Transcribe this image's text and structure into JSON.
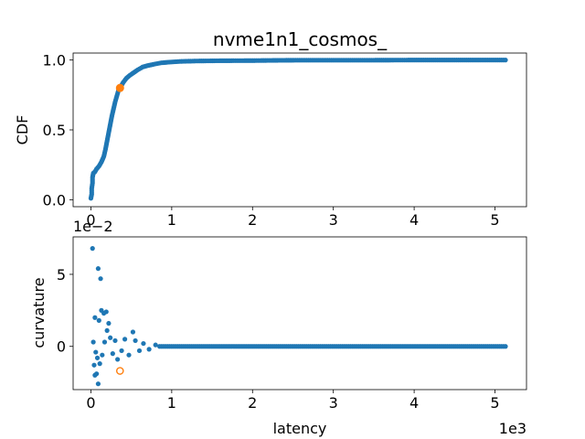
{
  "figure": {
    "title": "nvme1n1_cosmos_"
  },
  "chart_data": [
    {
      "type": "scatter",
      "title": "nvme1n1_cosmos_",
      "xlabel": "",
      "ylabel": "CDF",
      "xlim": [
        -0.22,
        5.39
      ],
      "ylim": [
        -0.05,
        1.05
      ],
      "xticks": [
        0,
        1,
        2,
        3,
        4,
        5
      ],
      "xtick_labels": [
        "0",
        "1",
        "2",
        "3",
        "4",
        "5"
      ],
      "yticks": [
        0.0,
        0.5,
        1.0
      ],
      "ytick_labels": [
        "0.0",
        "0.5",
        "1.0"
      ],
      "grid": false,
      "series": [
        {
          "color": "#1f77b4",
          "marker": "filled-circle",
          "description_points": [
            [
              0.0,
              0.01
            ],
            [
              0.01,
              0.04
            ],
            [
              0.01,
              0.08
            ],
            [
              0.02,
              0.12
            ],
            [
              0.02,
              0.16
            ],
            [
              0.03,
              0.19
            ],
            [
              0.05,
              0.2
            ],
            [
              0.07,
              0.22
            ],
            [
              0.1,
              0.24
            ],
            [
              0.13,
              0.27
            ],
            [
              0.16,
              0.31
            ],
            [
              0.18,
              0.36
            ],
            [
              0.2,
              0.42
            ],
            [
              0.22,
              0.48
            ],
            [
              0.24,
              0.54
            ],
            [
              0.26,
              0.6
            ],
            [
              0.28,
              0.65
            ],
            [
              0.3,
              0.7
            ],
            [
              0.32,
              0.74
            ],
            [
              0.34,
              0.78
            ],
            [
              0.37,
              0.81
            ],
            [
              0.4,
              0.84
            ],
            [
              0.44,
              0.87
            ],
            [
              0.48,
              0.89
            ],
            [
              0.53,
              0.91
            ],
            [
              0.58,
              0.93
            ],
            [
              0.64,
              0.95
            ],
            [
              0.7,
              0.96
            ],
            [
              0.78,
              0.97
            ],
            [
              0.87,
              0.98
            ],
            [
              0.97,
              0.985
            ],
            [
              1.1,
              0.99
            ],
            [
              1.3,
              0.993
            ],
            [
              1.6,
              0.995
            ],
            [
              2.0,
              0.996
            ],
            [
              2.35,
              0.998
            ],
            [
              2.6,
              0.999
            ],
            [
              3.0,
              0.999
            ],
            [
              3.5,
              0.999
            ],
            [
              4.0,
              1.0
            ],
            [
              4.5,
              1.0
            ],
            [
              5.13,
              1.0
            ]
          ]
        },
        {
          "color": "#ff7f0e",
          "marker": "filled-circle-large",
          "points": [
            [
              0.36,
              0.8
            ]
          ]
        }
      ]
    },
    {
      "type": "scatter",
      "title": "",
      "xlabel": "latency",
      "ylabel": "curvature",
      "x_offset_label": "1e3",
      "y_offset_label": "1e−2",
      "xlim": [
        -0.22,
        5.39
      ],
      "ylim": [
        -3.0,
        7.6
      ],
      "xticks": [
        0,
        1,
        2,
        3,
        4,
        5
      ],
      "xtick_labels": [
        "0",
        "1",
        "2",
        "3",
        "4",
        "5"
      ],
      "yticks": [
        0,
        5
      ],
      "ytick_labels": [
        "0",
        "5"
      ],
      "grid": false,
      "series": [
        {
          "color": "#1f77b4",
          "marker": "filled-circle",
          "points": [
            [
              0.02,
              6.8
            ],
            [
              0.09,
              5.4
            ],
            [
              0.12,
              4.7
            ],
            [
              0.05,
              2.0
            ],
            [
              0.13,
              2.5
            ],
            [
              0.16,
              2.3
            ],
            [
              0.19,
              2.4
            ],
            [
              0.22,
              1.6
            ],
            [
              0.2,
              1.1
            ],
            [
              0.1,
              1.8
            ],
            [
              0.03,
              0.3
            ],
            [
              0.06,
              -0.4
            ],
            [
              0.08,
              -0.8
            ],
            [
              0.04,
              -1.3
            ],
            [
              0.07,
              -1.9
            ],
            [
              0.05,
              -2.0
            ],
            [
              0.09,
              -2.6
            ],
            [
              0.11,
              -1.2
            ],
            [
              0.14,
              -0.6
            ],
            [
              0.17,
              0.3
            ],
            [
              0.24,
              0.6
            ],
            [
              0.27,
              -0.5
            ],
            [
              0.3,
              0.4
            ],
            [
              0.33,
              -0.9
            ],
            [
              0.38,
              -0.3
            ],
            [
              0.42,
              0.5
            ],
            [
              0.47,
              -0.6
            ],
            [
              0.52,
              1.0
            ],
            [
              0.55,
              0.4
            ],
            [
              0.6,
              -0.3
            ],
            [
              0.65,
              0.2
            ],
            [
              0.72,
              -0.2
            ],
            [
              0.8,
              0.1
            ]
          ],
          "band_from": 0.85,
          "band_to": 5.13,
          "band_value": 0.0
        },
        {
          "color": "#ff7f0e",
          "marker": "hollow-circle",
          "points": [
            [
              0.36,
              -1.7
            ]
          ]
        }
      ]
    }
  ]
}
